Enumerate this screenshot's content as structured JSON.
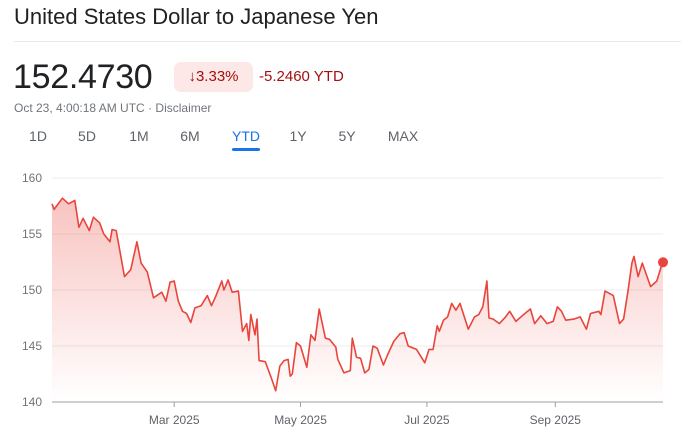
{
  "header": {
    "title": "United States Dollar to Japanese Yen",
    "price": "152.4730",
    "change_percent": "3.33%",
    "change_direction_icon": "arrow-down-icon",
    "change_ytd": "-5.2460 YTD",
    "timestamp": "Oct 23, 4:00:18 AM UTC",
    "separator": "·",
    "disclaimer": "Disclaimer"
  },
  "tabs": [
    {
      "label": "1D"
    },
    {
      "label": "5D"
    },
    {
      "label": "1M"
    },
    {
      "label": "6M"
    },
    {
      "label": "YTD",
      "active": true
    },
    {
      "label": "1Y"
    },
    {
      "label": "5Y"
    },
    {
      "label": "MAX"
    }
  ],
  "colors": {
    "line": "#e8453c",
    "negative": "#a50e0e",
    "badge_bg": "#fce8e6",
    "accent": "#1a73e8"
  },
  "chart_data": {
    "type": "area",
    "title": "",
    "xlabel": "",
    "ylabel": "",
    "ylim": [
      140,
      160
    ],
    "xlim": [
      "2025-01-01",
      "2025-10-23"
    ],
    "grid": true,
    "y_ticks": [
      "140",
      "145",
      "150",
      "155",
      "160"
    ],
    "x_ticks": [
      {
        "date": "2025-03-01",
        "label": "Mar 2025"
      },
      {
        "date": "2025-05-01",
        "label": "May 2025"
      },
      {
        "date": "2025-07-01",
        "label": "Jul 2025"
      },
      {
        "date": "2025-09-01",
        "label": "Sep 2025"
      }
    ],
    "points": [
      [
        "2025-01-01",
        157.7
      ],
      [
        "2025-01-02",
        157.2
      ],
      [
        "2025-01-06",
        158.2
      ],
      [
        "2025-01-09",
        157.7
      ],
      [
        "2025-01-12",
        158.0
      ],
      [
        "2025-01-14",
        155.6
      ],
      [
        "2025-01-16",
        156.4
      ],
      [
        "2025-01-19",
        155.3
      ],
      [
        "2025-01-21",
        156.5
      ],
      [
        "2025-01-24",
        156.0
      ],
      [
        "2025-01-26",
        155.0
      ],
      [
        "2025-01-29",
        154.3
      ],
      [
        "2025-01-30",
        155.4
      ],
      [
        "2025-02-01",
        155.3
      ],
      [
        "2025-02-05",
        151.2
      ],
      [
        "2025-02-08",
        151.8
      ],
      [
        "2025-02-11",
        154.3
      ],
      [
        "2025-02-13",
        152.4
      ],
      [
        "2025-02-16",
        151.6
      ],
      [
        "2025-02-19",
        149.3
      ],
      [
        "2025-02-23",
        149.8
      ],
      [
        "2025-02-25",
        149.0
      ],
      [
        "2025-02-27",
        150.7
      ],
      [
        "2025-03-01",
        150.8
      ],
      [
        "2025-03-03",
        149.0
      ],
      [
        "2025-03-05",
        148.1
      ],
      [
        "2025-03-07",
        147.9
      ],
      [
        "2025-03-09",
        147.1
      ],
      [
        "2025-03-11",
        148.4
      ],
      [
        "2025-03-14",
        148.6
      ],
      [
        "2025-03-17",
        149.5
      ],
      [
        "2025-03-19",
        148.6
      ],
      [
        "2025-03-21",
        149.4
      ],
      [
        "2025-03-24",
        150.8
      ],
      [
        "2025-03-25",
        150.0
      ],
      [
        "2025-03-27",
        150.9
      ],
      [
        "2025-03-29",
        149.8
      ],
      [
        "2025-04-01",
        149.9
      ],
      [
        "2025-04-03",
        146.3
      ],
      [
        "2025-04-05",
        147.0
      ],
      [
        "2025-04-06",
        145.5
      ],
      [
        "2025-04-07",
        147.8
      ],
      [
        "2025-04-09",
        146.0
      ],
      [
        "2025-04-10",
        147.4
      ],
      [
        "2025-04-11",
        143.7
      ],
      [
        "2025-04-14",
        143.6
      ],
      [
        "2025-04-17",
        142.1
      ],
      [
        "2025-04-19",
        141.0
      ],
      [
        "2025-04-21",
        143.2
      ],
      [
        "2025-04-23",
        143.7
      ],
      [
        "2025-04-25",
        143.8
      ],
      [
        "2025-04-26",
        142.3
      ],
      [
        "2025-04-27",
        142.5
      ],
      [
        "2025-04-29",
        145.3
      ],
      [
        "2025-05-01",
        145.0
      ],
      [
        "2025-05-04",
        143.1
      ],
      [
        "2025-05-06",
        146.0
      ],
      [
        "2025-05-08",
        145.5
      ],
      [
        "2025-05-10",
        148.3
      ],
      [
        "2025-05-13",
        145.7
      ],
      [
        "2025-05-15",
        145.6
      ],
      [
        "2025-05-18",
        144.9
      ],
      [
        "2025-05-19",
        143.8
      ],
      [
        "2025-05-22",
        142.6
      ],
      [
        "2025-05-25",
        142.8
      ],
      [
        "2025-05-26",
        145.7
      ],
      [
        "2025-05-28",
        144.0
      ],
      [
        "2025-05-30",
        143.9
      ],
      [
        "2025-06-01",
        142.6
      ],
      [
        "2025-06-03",
        142.9
      ],
      [
        "2025-06-05",
        145.0
      ],
      [
        "2025-06-07",
        144.8
      ],
      [
        "2025-06-10",
        143.3
      ],
      [
        "2025-06-12",
        144.2
      ],
      [
        "2025-06-15",
        145.4
      ],
      [
        "2025-06-18",
        146.1
      ],
      [
        "2025-06-20",
        146.2
      ],
      [
        "2025-06-22",
        145.0
      ],
      [
        "2025-06-26",
        144.7
      ],
      [
        "2025-06-30",
        143.5
      ],
      [
        "2025-07-02",
        144.7
      ],
      [
        "2025-07-04",
        144.7
      ],
      [
        "2025-07-06",
        146.8
      ],
      [
        "2025-07-07",
        146.3
      ],
      [
        "2025-07-09",
        147.3
      ],
      [
        "2025-07-11",
        147.6
      ],
      [
        "2025-07-13",
        148.8
      ],
      [
        "2025-07-15",
        148.2
      ],
      [
        "2025-07-17",
        148.8
      ],
      [
        "2025-07-21",
        146.5
      ],
      [
        "2025-07-24",
        147.6
      ],
      [
        "2025-07-26",
        147.8
      ],
      [
        "2025-07-28",
        148.5
      ],
      [
        "2025-07-30",
        150.8
      ],
      [
        "2025-07-31",
        147.5
      ],
      [
        "2025-08-02",
        147.4
      ],
      [
        "2025-08-05",
        147.0
      ],
      [
        "2025-08-08",
        147.6
      ],
      [
        "2025-08-10",
        148.1
      ],
      [
        "2025-08-13",
        147.2
      ],
      [
        "2025-08-16",
        147.7
      ],
      [
        "2025-08-20",
        148.3
      ],
      [
        "2025-08-22",
        147.0
      ],
      [
        "2025-08-25",
        147.7
      ],
      [
        "2025-08-28",
        147.0
      ],
      [
        "2025-08-31",
        147.2
      ],
      [
        "2025-09-02",
        148.5
      ],
      [
        "2025-09-04",
        148.1
      ],
      [
        "2025-09-06",
        147.3
      ],
      [
        "2025-09-10",
        147.4
      ],
      [
        "2025-09-13",
        147.6
      ],
      [
        "2025-09-16",
        146.5
      ],
      [
        "2025-09-18",
        147.9
      ],
      [
        "2025-09-22",
        148.1
      ],
      [
        "2025-09-23",
        147.8
      ],
      [
        "2025-09-25",
        149.9
      ],
      [
        "2025-09-29",
        149.5
      ],
      [
        "2025-10-02",
        147.0
      ],
      [
        "2025-10-04",
        147.4
      ],
      [
        "2025-10-06",
        149.8
      ],
      [
        "2025-10-08",
        152.4
      ],
      [
        "2025-10-09",
        153.0
      ],
      [
        "2025-10-11",
        151.2
      ],
      [
        "2025-10-13",
        152.4
      ],
      [
        "2025-10-17",
        150.3
      ],
      [
        "2025-10-20",
        150.8
      ],
      [
        "2025-10-22",
        152.0
      ],
      [
        "2025-10-23",
        152.473
      ]
    ]
  }
}
